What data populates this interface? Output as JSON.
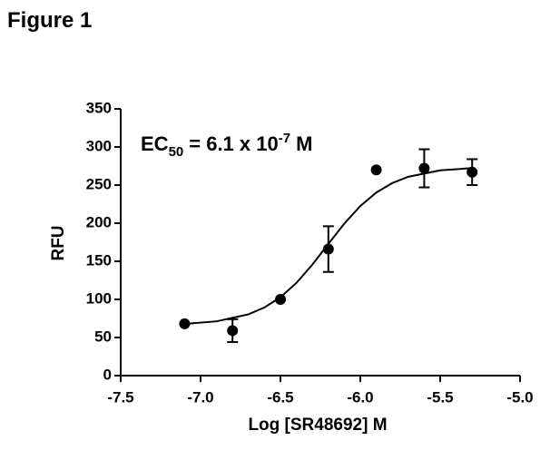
{
  "chart_data": {
    "type": "scatter",
    "figure_label": "Figure 1",
    "x_label": "Log [SR48692] M",
    "y_label": "RFU",
    "annotation": [
      "EC",
      "50",
      "= 6.1 x 10",
      "-7",
      "M"
    ],
    "color": "#000000",
    "xlim": [
      -7.5,
      -5.0
    ],
    "xticks": [
      {
        "value": -7.5,
        "label": "-7.5"
      },
      {
        "value": -7.0,
        "label": "-7.0"
      },
      {
        "value": -6.5,
        "label": "-6.5"
      },
      {
        "value": -6.0,
        "label": "-6.0"
      },
      {
        "value": -5.5,
        "label": "-5.5"
      },
      {
        "value": -5.0,
        "label": "-5.0"
      }
    ],
    "ylim": [
      0,
      350
    ],
    "yticks": [
      0,
      50,
      100,
      150,
      200,
      250,
      300,
      350
    ],
    "series": [
      {
        "x": [
          -7.1,
          -6.8,
          -6.5,
          -6.2,
          -5.9,
          -5.6,
          -5.3
        ],
        "values": [
          68,
          59,
          100,
          166,
          270,
          272,
          267
        ],
        "errors": [
          null,
          15,
          null,
          30,
          null,
          25,
          17
        ]
      }
    ],
    "fit": {
      "x": [
        -7.1,
        -6.9,
        -6.7,
        -6.6,
        -6.5,
        -6.4,
        -6.3,
        -6.2,
        -6.1,
        -6.0,
        -5.9,
        -5.8,
        -5.7,
        -5.5,
        -5.3
      ],
      "values": [
        67.9,
        71.2,
        80.4,
        89.4,
        102.8,
        121.6,
        145.7,
        172.8,
        199.5,
        222.5,
        240.2,
        252.7,
        260.9,
        269.3,
        272.3
      ]
    }
  }
}
